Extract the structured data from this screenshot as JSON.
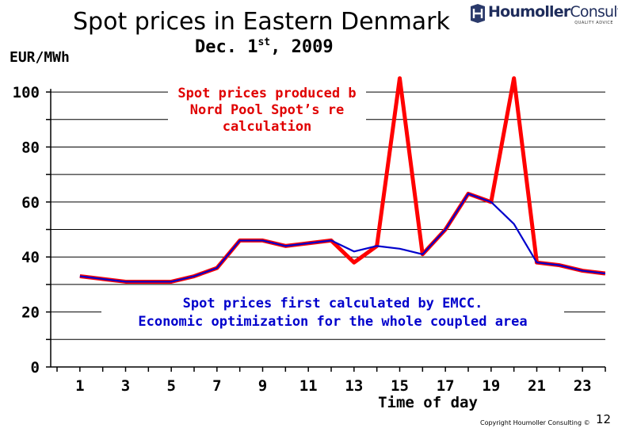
{
  "header": {
    "title": "Spot prices in Eastern Denmark",
    "subtitle_main": "Dec. 1",
    "subtitle_sup": "st",
    "subtitle_rest": ", 2009"
  },
  "logo": {
    "bold": "Houmoller",
    "light": "Consulting",
    "tagline": "QUALITY ADVICE"
  },
  "footer": {
    "copyright": "Copyright Houmoller Consulting ©",
    "page": "12"
  },
  "chart_data": {
    "type": "line",
    "ylabel": "EUR/MWh",
    "xlabel": "Time of day",
    "ylim": [
      0,
      100
    ],
    "xlim": [
      0,
      24
    ],
    "yticks": [
      0,
      20,
      40,
      60,
      80,
      100
    ],
    "xticks": [
      1,
      3,
      5,
      7,
      9,
      11,
      13,
      15,
      17,
      19,
      21,
      23
    ],
    "x": [
      1,
      2,
      3,
      4,
      5,
      6,
      7,
      8,
      9,
      10,
      11,
      12,
      13,
      14,
      15,
      16,
      17,
      18,
      19,
      20,
      21,
      22,
      23,
      24
    ],
    "series": [
      {
        "name": "Spot prices produced by Nord Pool Spot’s re-calculation",
        "color": "#ff0000",
        "values": [
          33,
          32,
          31,
          31,
          31,
          33,
          36,
          46,
          46,
          44,
          45,
          46,
          38,
          44,
          105,
          41,
          50,
          63,
          60,
          105,
          38,
          37,
          35,
          34
        ]
      },
      {
        "name": "Spot prices first calculated by EMCC. Economic optimization for the whole coupled area",
        "color": "#0000cc",
        "values": [
          33,
          32,
          31,
          31,
          31,
          33,
          36,
          46,
          46,
          44,
          45,
          46,
          42,
          44,
          43,
          41,
          50,
          63,
          60,
          52,
          38,
          37,
          35,
          34
        ]
      }
    ]
  }
}
